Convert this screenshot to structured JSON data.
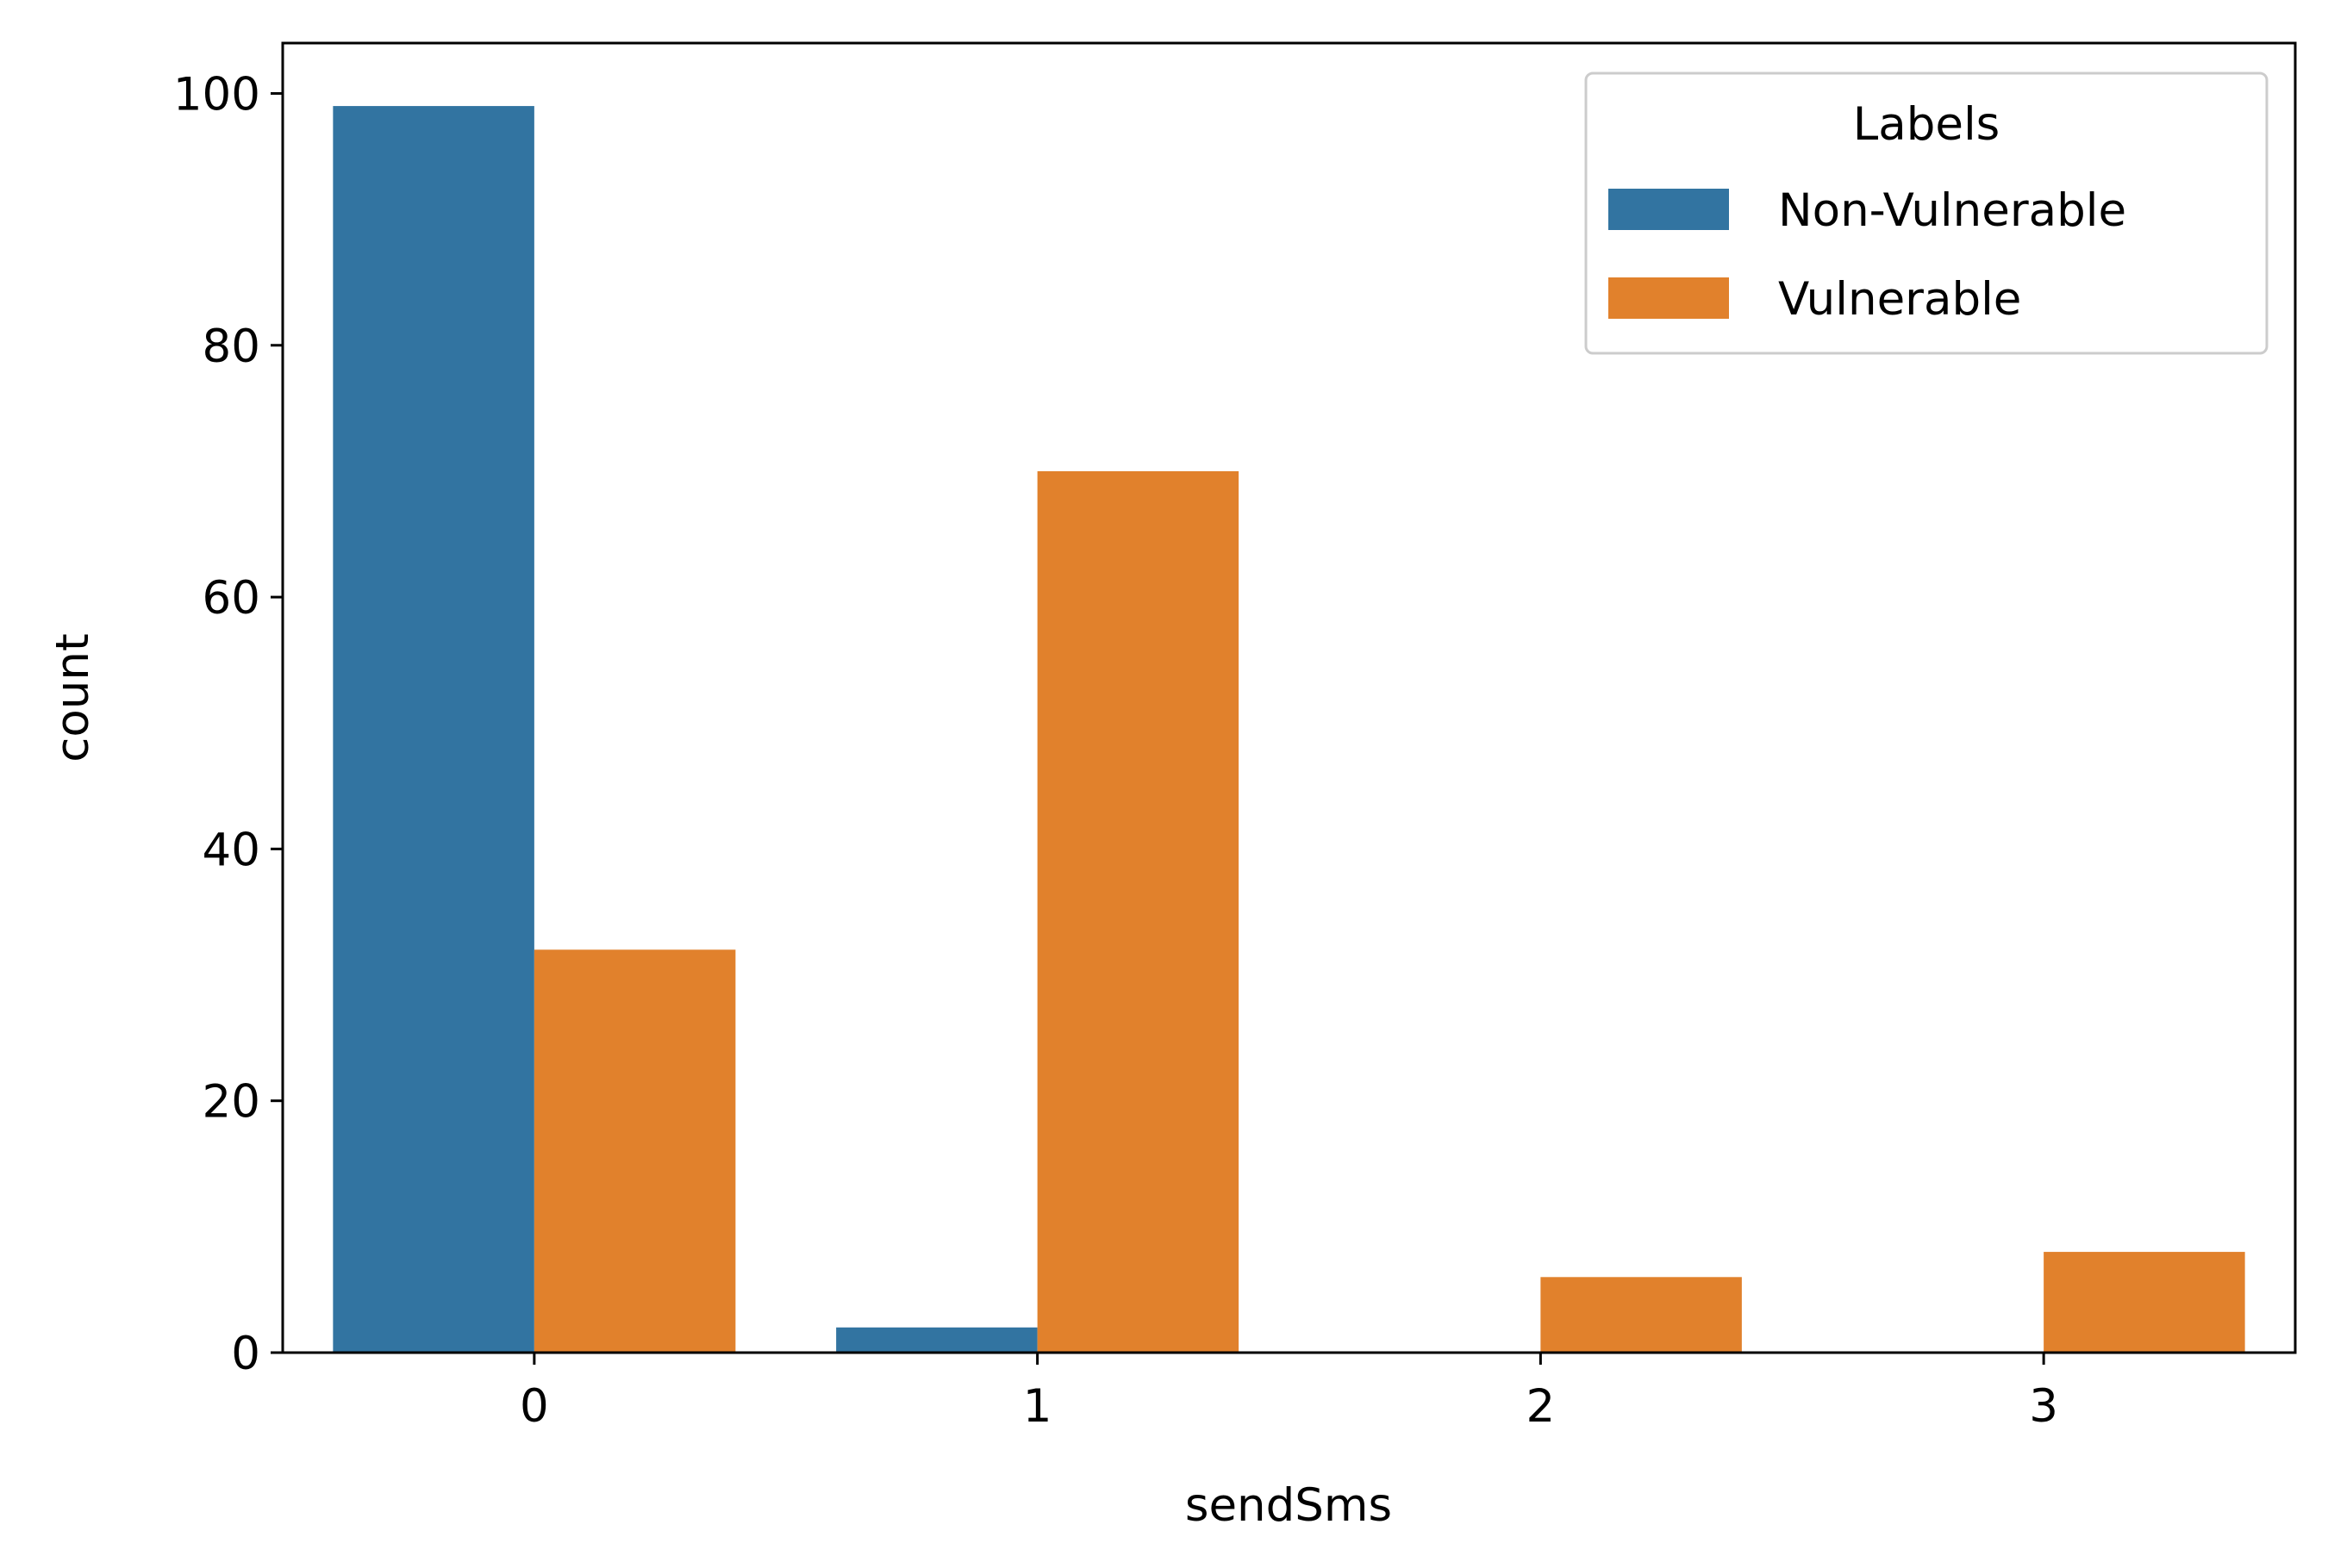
{
  "chart_data": {
    "type": "bar",
    "categories": [
      "0",
      "1",
      "2",
      "3"
    ],
    "series": [
      {
        "name": "Non-Vulnerable",
        "color": "#3274a1",
        "values": [
          99,
          2,
          0,
          0
        ]
      },
      {
        "name": "Vulnerable",
        "color": "#e1812c",
        "values": [
          32,
          70,
          6,
          8
        ]
      }
    ],
    "xlabel": "sendSms",
    "ylabel": "count",
    "ylim": [
      0,
      104
    ],
    "yticks": [
      0,
      20,
      40,
      60,
      80,
      100
    ],
    "grid": false,
    "legend": {
      "title": "Labels",
      "placement": "top-right"
    }
  }
}
